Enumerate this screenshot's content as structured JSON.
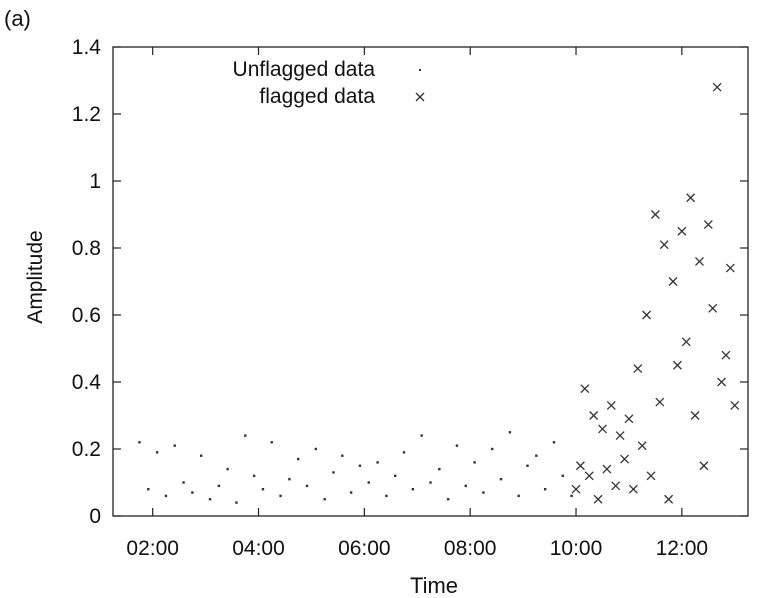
{
  "panel_label": "(a)",
  "chart_data": {
    "type": "scatter",
    "xlabel": "Time",
    "ylabel": "Amplitude",
    "xlim": [
      "01:15",
      "13:15"
    ],
    "ylim": [
      0,
      1.4
    ],
    "x_ticks": [
      "02:00",
      "04:00",
      "06:00",
      "08:00",
      "10:00",
      "12:00"
    ],
    "y_ticks": [
      "0",
      "0.2",
      "0.4",
      "0.6",
      "0.8",
      "1",
      "1.2",
      "1.4"
    ],
    "grid": false,
    "legend_position": "top",
    "series": [
      {
        "name": "Unflagged data",
        "marker": "dot",
        "color": "#333333",
        "x": [
          "01:45",
          "01:55",
          "02:05",
          "02:15",
          "02:25",
          "02:35",
          "02:45",
          "02:55",
          "03:05",
          "03:15",
          "03:25",
          "03:35",
          "03:45",
          "03:55",
          "04:05",
          "04:15",
          "04:25",
          "04:35",
          "04:45",
          "04:55",
          "05:05",
          "05:15",
          "05:25",
          "05:35",
          "05:45",
          "05:55",
          "06:05",
          "06:15",
          "06:25",
          "06:35",
          "06:45",
          "06:55",
          "07:05",
          "07:15",
          "07:25",
          "07:35",
          "07:45",
          "07:55",
          "08:05",
          "08:15",
          "08:25",
          "08:35",
          "08:45",
          "08:55",
          "09:05",
          "09:15",
          "09:25",
          "09:35",
          "09:45",
          "09:55"
        ],
        "y": [
          0.22,
          0.08,
          0.19,
          0.06,
          0.21,
          0.1,
          0.07,
          0.18,
          0.05,
          0.09,
          0.14,
          0.04,
          0.24,
          0.12,
          0.08,
          0.22,
          0.06,
          0.11,
          0.17,
          0.09,
          0.2,
          0.05,
          0.13,
          0.18,
          0.07,
          0.15,
          0.1,
          0.16,
          0.06,
          0.12,
          0.19,
          0.08,
          0.24,
          0.1,
          0.14,
          0.05,
          0.21,
          0.09,
          0.16,
          0.07,
          0.2,
          0.11,
          0.25,
          0.06,
          0.15,
          0.18,
          0.08,
          0.22,
          0.12,
          0.06
        ]
      },
      {
        "name": "flagged data",
        "marker": "x",
        "color": "#333333",
        "x": [
          "10:00",
          "10:05",
          "10:10",
          "10:15",
          "10:20",
          "10:25",
          "10:30",
          "10:35",
          "10:40",
          "10:45",
          "10:50",
          "10:55",
          "11:00",
          "11:05",
          "11:10",
          "11:15",
          "11:20",
          "11:25",
          "11:30",
          "11:35",
          "11:40",
          "11:45",
          "11:50",
          "11:55",
          "12:00",
          "12:05",
          "12:10",
          "12:15",
          "12:20",
          "12:25",
          "12:30",
          "12:35",
          "12:40",
          "12:45",
          "12:50",
          "12:55",
          "13:00"
        ],
        "y": [
          0.08,
          0.15,
          0.38,
          0.12,
          0.3,
          0.05,
          0.26,
          0.14,
          0.33,
          0.09,
          0.24,
          0.17,
          0.29,
          0.08,
          0.44,
          0.21,
          0.6,
          0.12,
          0.9,
          0.34,
          0.81,
          0.05,
          0.7,
          0.45,
          0.85,
          0.52,
          0.95,
          0.3,
          0.76,
          0.15,
          0.87,
          0.62,
          1.28,
          0.4,
          0.48,
          0.74,
          0.33
        ]
      }
    ]
  }
}
